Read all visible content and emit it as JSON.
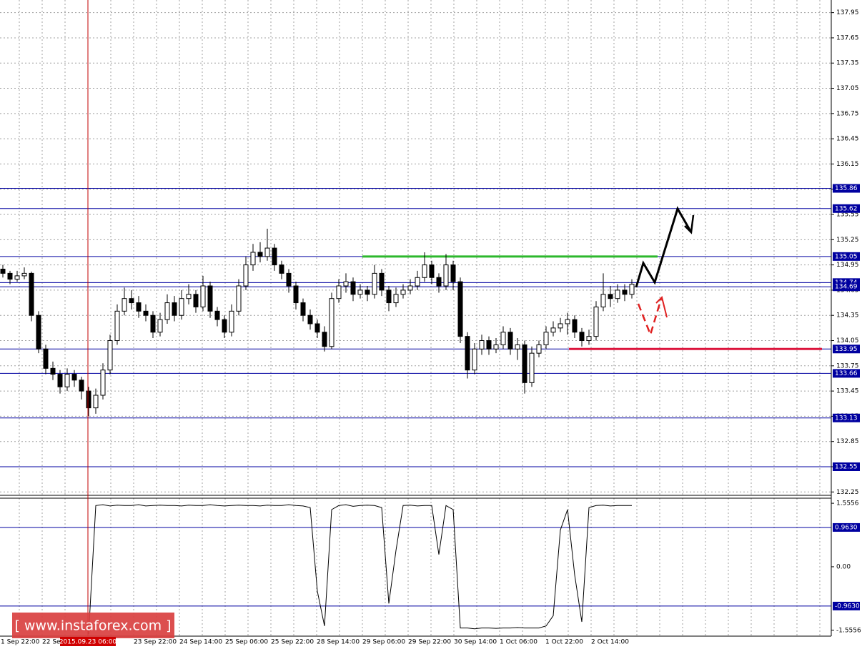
{
  "chart_data": {
    "type": "candlestick",
    "ylim": [
      132.21,
      138.1
    ],
    "yticks": [
      132.25,
      132.55,
      132.85,
      133.15,
      133.45,
      133.75,
      134.05,
      134.35,
      134.65,
      134.95,
      135.25,
      135.55,
      135.85,
      136.15,
      136.45,
      136.75,
      137.05,
      137.35,
      137.65,
      137.95
    ],
    "levels": [
      135.86,
      135.62,
      135.05,
      134.74,
      134.69,
      133.95,
      133.66,
      133.13,
      132.55
    ],
    "level_color": "#0000a0",
    "resistance": 135.05,
    "resistance_color": "#2db82d",
    "support": 133.95,
    "support_color": "#dc143c",
    "x_labels": [
      "1 Sep 22:00",
      "22 Sep",
      null,
      "23 Sep 22:00",
      "24 Sep 14:00",
      "25 Sep 06:00",
      "25 Sep 22:00",
      "28 Sep 14:00",
      "29 Sep 06:00",
      "29 Sep 22:00",
      "30 Sep 14:00",
      "1 Oct 06:00",
      "1 Oct 22:00",
      "2 Oct 14:00"
    ],
    "crosshair_label": "2015.09.23 06:00",
    "watermark": "[ www.instaforex.com ]",
    "grid": true,
    "series": [
      {
        "ohlc": [
          [
            134.9,
            134.95,
            134.8,
            134.85
          ],
          [
            134.85,
            134.88,
            134.72,
            134.78
          ],
          [
            134.78,
            134.88,
            134.75,
            134.82
          ],
          [
            134.82,
            134.92,
            134.78,
            134.85
          ],
          [
            134.85,
            134.87,
            134.28,
            134.35
          ],
          [
            134.35,
            134.4,
            133.9,
            133.95
          ],
          [
            133.95,
            134.0,
            133.65,
            133.72
          ],
          [
            133.72,
            133.8,
            133.58,
            133.65
          ],
          [
            133.65,
            133.7,
            133.42,
            133.5
          ],
          [
            133.5,
            133.72,
            133.45,
            133.65
          ],
          [
            133.65,
            133.7,
            133.5,
            133.58
          ],
          [
            133.58,
            133.62,
            133.35,
            133.45
          ],
          [
            133.45,
            133.5,
            133.15,
            133.25
          ],
          [
            133.25,
            133.48,
            133.18,
            133.4
          ],
          [
            133.4,
            133.78,
            133.35,
            133.7
          ],
          [
            133.7,
            134.12,
            133.65,
            134.05
          ],
          [
            134.05,
            134.48,
            134.0,
            134.4
          ],
          [
            134.4,
            134.68,
            134.35,
            134.55
          ],
          [
            134.55,
            134.65,
            134.42,
            134.5
          ],
          [
            134.5,
            134.58,
            134.32,
            134.4
          ],
          [
            134.4,
            134.48,
            134.28,
            134.35
          ],
          [
            134.35,
            134.4,
            134.08,
            134.15
          ],
          [
            134.15,
            134.38,
            134.1,
            134.3
          ],
          [
            134.3,
            134.6,
            134.25,
            134.5
          ],
          [
            134.5,
            134.58,
            134.28,
            134.35
          ],
          [
            134.35,
            134.65,
            134.3,
            134.55
          ],
          [
            134.55,
            134.72,
            134.48,
            134.6
          ],
          [
            134.6,
            134.65,
            134.38,
            134.45
          ],
          [
            134.45,
            134.82,
            134.4,
            134.7
          ],
          [
            134.7,
            134.75,
            134.32,
            134.4
          ],
          [
            134.4,
            134.45,
            134.22,
            134.3
          ],
          [
            134.3,
            134.35,
            134.08,
            134.15
          ],
          [
            134.15,
            134.48,
            134.1,
            134.4
          ],
          [
            134.4,
            134.78,
            134.35,
            134.7
          ],
          [
            134.7,
            135.05,
            134.65,
            134.95
          ],
          [
            134.95,
            135.2,
            134.88,
            135.1
          ],
          [
            135.1,
            135.22,
            134.98,
            135.05
          ],
          [
            135.05,
            135.38,
            135.0,
            135.15
          ],
          [
            135.15,
            135.2,
            134.88,
            134.95
          ],
          [
            134.95,
            135.0,
            134.78,
            134.85
          ],
          [
            134.85,
            134.9,
            134.62,
            134.7
          ],
          [
            134.7,
            134.75,
            134.42,
            134.5
          ],
          [
            134.5,
            134.55,
            134.28,
            134.35
          ],
          [
            134.35,
            134.42,
            134.18,
            134.25
          ],
          [
            134.25,
            134.3,
            134.08,
            134.15
          ],
          [
            134.15,
            134.22,
            133.92,
            133.98
          ],
          [
            133.98,
            134.62,
            133.95,
            134.55
          ],
          [
            134.55,
            134.78,
            134.5,
            134.7
          ],
          [
            134.7,
            134.85,
            134.62,
            134.75
          ],
          [
            134.75,
            134.8,
            134.52,
            134.6
          ],
          [
            134.6,
            134.72,
            134.55,
            134.65
          ],
          [
            134.65,
            134.7,
            134.52,
            134.6
          ],
          [
            134.6,
            134.95,
            134.55,
            134.85
          ],
          [
            134.85,
            134.9,
            134.58,
            134.65
          ],
          [
            134.65,
            134.7,
            134.4,
            134.5
          ],
          [
            134.5,
            134.68,
            134.45,
            134.6
          ],
          [
            134.6,
            134.72,
            134.55,
            134.65
          ],
          [
            134.65,
            134.78,
            134.6,
            134.7
          ],
          [
            134.7,
            134.88,
            134.65,
            134.8
          ],
          [
            134.8,
            135.1,
            134.75,
            134.95
          ],
          [
            134.95,
            135.0,
            134.72,
            134.8
          ],
          [
            134.8,
            134.85,
            134.62,
            134.7
          ],
          [
            134.7,
            135.08,
            134.65,
            134.95
          ],
          [
            134.95,
            135.0,
            134.65,
            134.75
          ],
          [
            134.75,
            134.8,
            134.02,
            134.1
          ],
          [
            134.1,
            134.15,
            133.6,
            133.7
          ],
          [
            133.7,
            134.02,
            133.65,
            133.95
          ],
          [
            133.95,
            134.12,
            133.88,
            134.05
          ],
          [
            134.05,
            134.1,
            133.88,
            133.95
          ],
          [
            133.95,
            134.08,
            133.9,
            134.0
          ],
          [
            134.0,
            134.22,
            133.95,
            134.15
          ],
          [
            134.15,
            134.2,
            133.88,
            133.95
          ],
          [
            133.95,
            134.08,
            133.82,
            134.0
          ],
          [
            134.0,
            134.05,
            133.42,
            133.55
          ],
          [
            133.55,
            133.98,
            133.5,
            133.9
          ],
          [
            133.9,
            134.05,
            133.85,
            134.0
          ],
          [
            134.0,
            134.22,
            133.95,
            134.15
          ],
          [
            134.15,
            134.28,
            134.1,
            134.2
          ],
          [
            134.2,
            134.32,
            134.15,
            134.25
          ],
          [
            134.25,
            134.38,
            134.12,
            134.3
          ],
          [
            134.3,
            134.35,
            134.08,
            134.15
          ],
          [
            134.15,
            134.2,
            133.98,
            134.05
          ],
          [
            134.05,
            134.18,
            134.0,
            134.1
          ],
          [
            134.1,
            134.52,
            134.05,
            134.45
          ],
          [
            134.45,
            134.85,
            134.4,
            134.6
          ],
          [
            134.6,
            134.7,
            134.45,
            134.55
          ],
          [
            134.55,
            134.72,
            134.5,
            134.65
          ],
          [
            134.65,
            134.72,
            134.52,
            134.6
          ],
          [
            134.6,
            134.78,
            134.55,
            134.72
          ]
        ]
      }
    ],
    "indicator": {
      "type": "line",
      "color": "#000000",
      "ylim": [
        -1.7,
        1.68
      ],
      "yticks": [
        1.5556,
        {
          "value": 0,
          "label": "0.00"
        },
        -1.5556
      ],
      "levels": [
        {
          "value": 0.963,
          "label": "0.9630"
        },
        {
          "value": -0.963,
          "label": "-0.9630"
        }
      ],
      "values": [
        null,
        null,
        null,
        null,
        null,
        null,
        null,
        null,
        null,
        null,
        null,
        null,
        -1.65,
        1.5,
        1.52,
        1.49,
        1.51,
        1.5,
        1.5,
        1.52,
        1.49,
        1.5,
        1.51,
        1.5,
        1.5,
        1.49,
        1.51,
        1.5,
        1.5,
        1.52,
        1.5,
        1.49,
        1.5,
        1.51,
        1.5,
        1.5,
        1.49,
        1.51,
        1.5,
        1.5,
        1.52,
        1.5,
        1.49,
        1.45,
        -0.6,
        -1.45,
        1.4,
        1.5,
        1.52,
        1.48,
        1.5,
        1.51,
        1.5,
        1.45,
        -0.9,
        0.4,
        1.5,
        1.51,
        1.49,
        1.5,
        1.5,
        0.3,
        1.5,
        1.4,
        -1.5,
        -1.5,
        -1.52,
        -1.5,
        -1.5,
        -1.51,
        -1.5,
        -1.5,
        -1.49,
        -1.5,
        -1.5,
        -1.5,
        -1.45,
        -1.2,
        0.9,
        1.4,
        -0.2,
        -1.35,
        1.45,
        1.5,
        1.51,
        1.49,
        1.5,
        1.5,
        1.5
      ]
    }
  }
}
